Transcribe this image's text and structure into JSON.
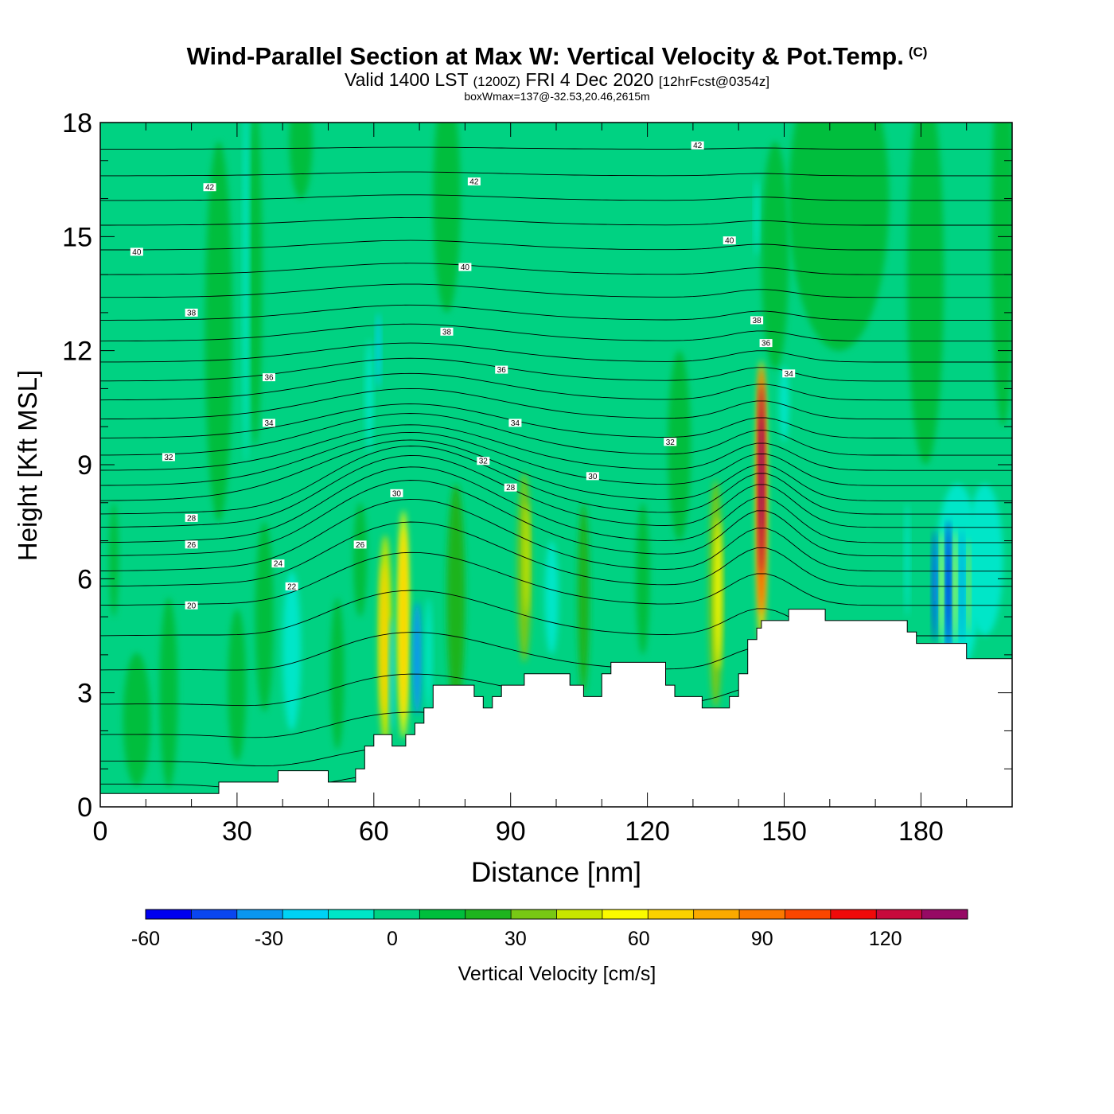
{
  "header": {
    "title": "Wind-Parallel Section at Max W: Vertical Velocity & Pot.Temp.",
    "copyright": "(C)",
    "valid_prefix": "Valid 1400 LST",
    "valid_z": "(1200Z)",
    "valid_date": "FRI 4 Dec 2020",
    "forecast": "[12hrFcst@0354z]",
    "boxwmax": "boxWmax=137@-32.53,20.46,2615m"
  },
  "chart_data": {
    "type": "heatmap",
    "xlabel": "Distance [nm]",
    "ylabel": "Height [Kft MSL]",
    "xlim": [
      0,
      200
    ],
    "ylim": [
      0,
      18
    ],
    "x_ticks": [
      "0",
      "30",
      "60",
      "90",
      "120",
      "150",
      "180"
    ],
    "y_ticks": [
      "0",
      "3",
      "6",
      "9",
      "12",
      "15",
      "18"
    ],
    "colorbar": {
      "label": "Vertical Velocity [cm/s]",
      "min": -60,
      "max": 140,
      "step": 10,
      "tick_labels": [
        "-60",
        "-30",
        "0",
        "30",
        "60",
        "90",
        "120"
      ],
      "colors": [
        "#0000f0",
        "#0a46f0",
        "#0a96f0",
        "#00d2f5",
        "#00e6c8",
        "#00d282",
        "#00be3c",
        "#1eb41e",
        "#78c814",
        "#c8e600",
        "#fafa00",
        "#fad200",
        "#faaa00",
        "#fa7800",
        "#fa4600",
        "#f00a0a",
        "#c80a3c",
        "#960a64"
      ]
    },
    "theta_labels": [
      {
        "x": 8,
        "y": 14.6,
        "text": "40"
      },
      {
        "x": 24,
        "y": 16.3,
        "text": "42"
      },
      {
        "x": 82,
        "y": 16.45,
        "text": "42"
      },
      {
        "x": 131,
        "y": 17.4,
        "text": "42"
      },
      {
        "x": 80,
        "y": 14.2,
        "text": "40"
      },
      {
        "x": 138,
        "y": 14.9,
        "text": "40"
      },
      {
        "x": 20,
        "y": 13.0,
        "text": "38"
      },
      {
        "x": 76,
        "y": 12.5,
        "text": "38"
      },
      {
        "x": 144,
        "y": 12.8,
        "text": "38"
      },
      {
        "x": 37,
        "y": 11.3,
        "text": "36"
      },
      {
        "x": 88,
        "y": 11.5,
        "text": "36"
      },
      {
        "x": 146,
        "y": 12.2,
        "text": "36"
      },
      {
        "x": 37,
        "y": 10.1,
        "text": "34"
      },
      {
        "x": 91,
        "y": 10.1,
        "text": "34"
      },
      {
        "x": 151,
        "y": 11.4,
        "text": "34"
      },
      {
        "x": 15,
        "y": 9.2,
        "text": "32"
      },
      {
        "x": 84,
        "y": 9.1,
        "text": "32"
      },
      {
        "x": 125,
        "y": 9.6,
        "text": "32"
      },
      {
        "x": 65,
        "y": 8.25,
        "text": "30"
      },
      {
        "x": 108,
        "y": 8.7,
        "text": "30"
      },
      {
        "x": 20,
        "y": 7.6,
        "text": "28"
      },
      {
        "x": 90,
        "y": 8.4,
        "text": "28"
      },
      {
        "x": 20,
        "y": 6.9,
        "text": "26"
      },
      {
        "x": 57,
        "y": 6.9,
        "text": "26"
      },
      {
        "x": 39,
        "y": 6.4,
        "text": "24"
      },
      {
        "x": 42,
        "y": 5.8,
        "text": "22"
      },
      {
        "x": 20,
        "y": 5.3,
        "text": "20"
      }
    ],
    "terrain": [
      [
        0,
        0.35
      ],
      [
        26,
        0.35
      ],
      [
        26,
        0.65
      ],
      [
        39,
        0.65
      ],
      [
        39,
        0.95
      ],
      [
        50,
        0.95
      ],
      [
        50,
        0.65
      ],
      [
        56,
        0.65
      ],
      [
        56,
        1.0
      ],
      [
        58,
        1.0
      ],
      [
        58,
        1.6
      ],
      [
        60,
        1.6
      ],
      [
        60,
        1.9
      ],
      [
        64,
        1.9
      ],
      [
        64,
        1.6
      ],
      [
        67,
        1.6
      ],
      [
        67,
        1.9
      ],
      [
        69,
        1.9
      ],
      [
        69,
        2.2
      ],
      [
        71,
        2.2
      ],
      [
        71,
        2.6
      ],
      [
        73,
        2.6
      ],
      [
        73,
        3.2
      ],
      [
        82,
        3.2
      ],
      [
        82,
        2.9
      ],
      [
        84,
        2.9
      ],
      [
        84,
        2.6
      ],
      [
        86,
        2.6
      ],
      [
        86,
        2.9
      ],
      [
        88,
        2.9
      ],
      [
        88,
        3.2
      ],
      [
        93,
        3.2
      ],
      [
        93,
        3.5
      ],
      [
        103,
        3.5
      ],
      [
        103,
        3.2
      ],
      [
        106,
        3.2
      ],
      [
        106,
        2.9
      ],
      [
        110,
        2.9
      ],
      [
        110,
        3.5
      ],
      [
        112,
        3.5
      ],
      [
        112,
        3.8
      ],
      [
        124,
        3.8
      ],
      [
        124,
        3.2
      ],
      [
        126,
        3.2
      ],
      [
        126,
        2.9
      ],
      [
        132,
        2.9
      ],
      [
        132,
        2.6
      ],
      [
        138,
        2.6
      ],
      [
        138,
        2.9
      ],
      [
        140,
        2.9
      ],
      [
        140,
        3.5
      ],
      [
        142,
        3.5
      ],
      [
        142,
        4.4
      ],
      [
        144,
        4.4
      ],
      [
        144,
        4.7
      ],
      [
        145,
        4.7
      ],
      [
        145,
        4.9
      ],
      [
        151,
        4.9
      ],
      [
        151,
        5.2
      ],
      [
        159,
        5.2
      ],
      [
        159,
        4.9
      ],
      [
        177,
        4.9
      ],
      [
        177,
        4.6
      ],
      [
        179,
        4.6
      ],
      [
        179,
        4.3
      ],
      [
        190,
        4.3
      ],
      [
        190,
        3.9
      ],
      [
        200,
        3.9
      ],
      [
        200,
        0
      ]
    ],
    "velocity_features": [
      {
        "x": 26,
        "y": 12.5,
        "w": 6,
        "h": 10,
        "v": 5
      },
      {
        "x": 34,
        "y": 14.0,
        "w": 3,
        "h": 9,
        "v": 5
      },
      {
        "x": 32,
        "y": 14.0,
        "w": 1.2,
        "h": 10,
        "v": -15
      },
      {
        "x": 44,
        "y": 17.5,
        "w": 5,
        "h": 3,
        "v": 5
      },
      {
        "x": 76,
        "y": 16.0,
        "w": 6,
        "h": 6,
        "v": 5
      },
      {
        "x": 162,
        "y": 16.0,
        "w": 22,
        "h": 8,
        "v": 5
      },
      {
        "x": 181,
        "y": 14.0,
        "w": 8,
        "h": 10,
        "v": 5
      },
      {
        "x": 198,
        "y": 15.0,
        "w": 5,
        "h": 10,
        "v": 5
      },
      {
        "x": 148,
        "y": 14.5,
        "w": 6,
        "h": 6,
        "v": 5
      },
      {
        "x": 144,
        "y": 15.5,
        "w": 1,
        "h": 2,
        "v": -15
      },
      {
        "x": 59,
        "y": 10.8,
        "w": 1.5,
        "h": 3,
        "v": -15
      },
      {
        "x": 61,
        "y": 12.0,
        "w": 1,
        "h": 2,
        "v": -25
      },
      {
        "x": 42,
        "y": 4.1,
        "w": 4,
        "h": 4.2,
        "v": -15
      },
      {
        "x": 36,
        "y": 5.0,
        "w": 4,
        "h": 5,
        "v": 5
      },
      {
        "x": 8,
        "y": 2.3,
        "w": 6,
        "h": 3.5,
        "v": 5
      },
      {
        "x": 30,
        "y": 3.2,
        "w": 4,
        "h": 4,
        "v": 5
      },
      {
        "x": 52,
        "y": 3.5,
        "w": 3,
        "h": 4,
        "v": 5
      },
      {
        "x": 62.5,
        "y": 4.4,
        "w": 3,
        "h": 5.5,
        "v": 35
      },
      {
        "x": 62.2,
        "y": 4.4,
        "w": 1.5,
        "h": 4,
        "v": 55
      },
      {
        "x": 64,
        "y": 3.5,
        "w": 1,
        "h": 3,
        "v": -25
      },
      {
        "x": 66.5,
        "y": 4.8,
        "w": 2.5,
        "h": 6,
        "v": 45
      },
      {
        "x": 66.5,
        "y": 4.8,
        "w": 1.6,
        "h": 5,
        "v": 55
      },
      {
        "x": 69.5,
        "y": 3.9,
        "w": 2,
        "h": 3,
        "v": -35
      },
      {
        "x": 72,
        "y": 4.0,
        "w": 1.5,
        "h": 3,
        "v": -15
      },
      {
        "x": 78,
        "y": 5.5,
        "w": 4,
        "h": 6,
        "v": 15
      },
      {
        "x": 93,
        "y": 6.3,
        "w": 3,
        "h": 5,
        "v": 25
      },
      {
        "x": 93.5,
        "y": 6.5,
        "w": 1.2,
        "h": 3,
        "v": 35
      },
      {
        "x": 99,
        "y": 5.5,
        "w": 3,
        "h": 3,
        "v": -15
      },
      {
        "x": 106,
        "y": 5.5,
        "w": 2.5,
        "h": 5,
        "v": 15
      },
      {
        "x": 119,
        "y": 6.0,
        "w": 3,
        "h": 4,
        "v": 5
      },
      {
        "x": 127,
        "y": 9.5,
        "w": 5,
        "h": 5,
        "v": 5
      },
      {
        "x": 135,
        "y": 5.6,
        "w": 3,
        "h": 6,
        "v": 25
      },
      {
        "x": 135.5,
        "y": 5.6,
        "w": 1.5,
        "h": 4,
        "v": 45
      },
      {
        "x": 145,
        "y": 8.0,
        "w": 2.5,
        "h": 7.5,
        "v": 55
      },
      {
        "x": 145,
        "y": 8.3,
        "w": 1.6,
        "h": 6.5,
        "v": 85
      },
      {
        "x": 145,
        "y": 8.6,
        "w": 1.1,
        "h": 5,
        "v": 115
      },
      {
        "x": 145,
        "y": 8.8,
        "w": 0.6,
        "h": 3,
        "v": 135
      },
      {
        "x": 150,
        "y": 10.6,
        "w": 2,
        "h": 2,
        "v": -15
      },
      {
        "x": 194,
        "y": 6.5,
        "w": 8,
        "h": 4,
        "v": -15
      },
      {
        "x": 188,
        "y": 6.0,
        "w": 10,
        "h": 5,
        "v": -15
      },
      {
        "x": 183,
        "y": 5.8,
        "w": 1,
        "h": 3,
        "v": -45
      },
      {
        "x": 186,
        "y": 5.8,
        "w": 1,
        "h": 3.5,
        "v": -55
      },
      {
        "x": 189,
        "y": 5.8,
        "w": 0.8,
        "h": 3,
        "v": -35
      },
      {
        "x": 184.5,
        "y": 5.8,
        "w": 0.7,
        "h": 3,
        "v": 45
      },
      {
        "x": 187.5,
        "y": 5.8,
        "w": 0.7,
        "h": 3,
        "v": 45
      },
      {
        "x": 190.5,
        "y": 5.8,
        "w": 0.6,
        "h": 2.5,
        "v": 35
      },
      {
        "x": 177,
        "y": 6.5,
        "w": 1,
        "h": 3,
        "v": -15
      },
      {
        "x": 3,
        "y": 6.5,
        "w": 2,
        "h": 3,
        "v": 5
      },
      {
        "x": 15,
        "y": 3.0,
        "w": 4,
        "h": 5,
        "v": 5
      },
      {
        "x": 57,
        "y": 6.5,
        "w": 3,
        "h": 3,
        "v": 5
      }
    ],
    "theta_lines": [
      {
        "base": 0.6,
        "bump": 0.3
      },
      {
        "base": 1.2,
        "bump": 0.4
      },
      {
        "base": 1.9,
        "bump": 0.6
      },
      {
        "base": 2.7,
        "bump": 0.8
      },
      {
        "base": 3.6,
        "bump": 1.0
      },
      {
        "base": 4.5,
        "bump": 1.2
      },
      {
        "base": 5.3,
        "bump": 1.4
      },
      {
        "base": 5.8,
        "bump": 1.7
      },
      {
        "base": 6.2,
        "bump": 1.9
      },
      {
        "base": 6.6,
        "bump": 2.0
      },
      {
        "base": 6.95,
        "bump": 2.0
      },
      {
        "base": 7.35,
        "bump": 1.9
      },
      {
        "base": 7.7,
        "bump": 1.8
      },
      {
        "base": 8.05,
        "bump": 1.6
      },
      {
        "base": 8.45,
        "bump": 1.4
      },
      {
        "base": 8.85,
        "bump": 1.2
      },
      {
        "base": 9.25,
        "bump": 1.1
      },
      {
        "base": 9.7,
        "bump": 0.9
      },
      {
        "base": 10.2,
        "bump": 0.8
      },
      {
        "base": 10.7,
        "bump": 0.7
      },
      {
        "base": 11.2,
        "bump": 0.6
      },
      {
        "base": 11.7,
        "bump": 0.5
      },
      {
        "base": 12.25,
        "bump": 0.45
      },
      {
        "base": 12.8,
        "bump": 0.4
      },
      {
        "base": 13.4,
        "bump": 0.35
      },
      {
        "base": 14.0,
        "bump": 0.3
      },
      {
        "base": 14.65,
        "bump": 0.25
      },
      {
        "base": 15.3,
        "bump": 0.2
      },
      {
        "base": 15.95,
        "bump": 0.15
      },
      {
        "base": 16.6,
        "bump": 0.1
      },
      {
        "base": 17.3,
        "bump": 0.05
      }
    ]
  }
}
